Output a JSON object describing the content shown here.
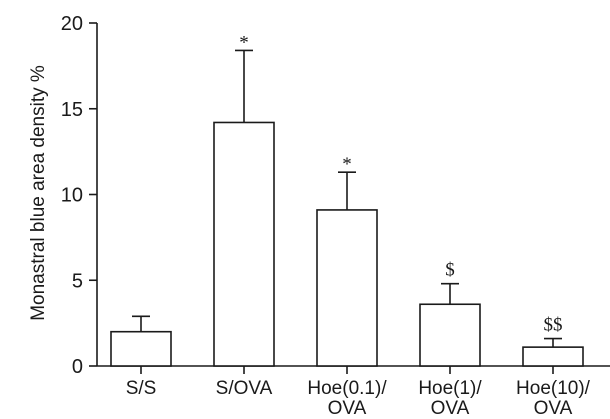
{
  "chart_data": {
    "type": "bar",
    "ylabel": "Monastral blue area density  %",
    "ylim": [
      0,
      20
    ],
    "yticks": [
      0,
      5,
      10,
      15,
      20
    ],
    "grid": false,
    "categories": [
      [
        "S/S"
      ],
      [
        "S/OVA"
      ],
      [
        "Hoe(0.1)/",
        "OVA"
      ],
      [
        "Hoe(1)/",
        "OVA"
      ],
      [
        "Hoe(10)/",
        "OVA"
      ]
    ],
    "values": [
      2.0,
      14.2,
      9.1,
      3.6,
      1.1
    ],
    "errors": [
      0.9,
      4.2,
      2.2,
      1.2,
      0.5
    ],
    "annotations": [
      "",
      "*",
      "*",
      "$",
      "$$"
    ],
    "colors": {
      "bar_fill": "#ffffff",
      "stroke": "#1a1a1a"
    }
  }
}
